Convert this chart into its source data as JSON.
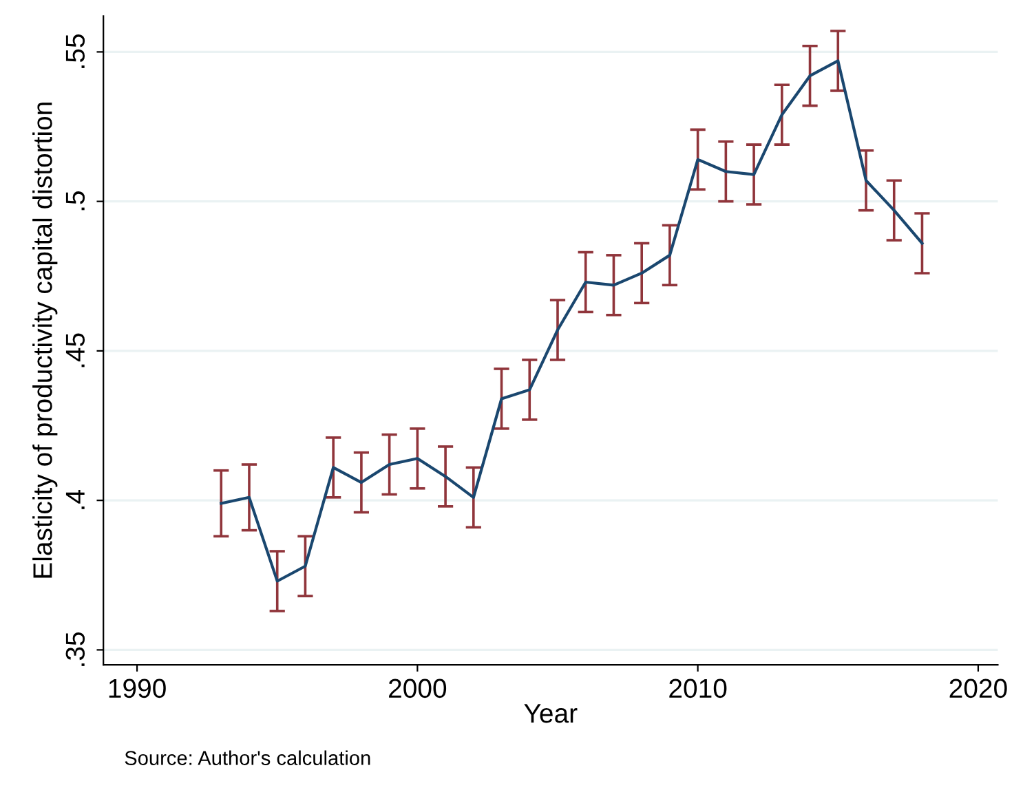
{
  "chart_data": {
    "type": "line",
    "xlabel": "Year",
    "ylabel": "Elasticity of productivity capital distortion",
    "x": [
      1993,
      1994,
      1995,
      1996,
      1997,
      1998,
      1999,
      2000,
      2001,
      2002,
      2003,
      2004,
      2005,
      2006,
      2007,
      2008,
      2009,
      2010,
      2011,
      2012,
      2013,
      2014,
      2015,
      2016,
      2017,
      2018
    ],
    "series": [
      {
        "color": "#1a476f",
        "values": [
          0.399,
          0.401,
          0.373,
          0.378,
          0.411,
          0.406,
          0.412,
          0.414,
          0.408,
          0.401,
          0.434,
          0.437,
          0.457,
          0.473,
          0.472,
          0.476,
          0.482,
          0.514,
          0.51,
          0.509,
          0.529,
          0.542,
          0.547,
          0.507,
          0.497,
          0.486
        ],
        "errors": [
          0.011,
          0.011,
          0.01,
          0.01,
          0.01,
          0.01,
          0.01,
          0.01,
          0.01,
          0.01,
          0.01,
          0.01,
          0.01,
          0.01,
          0.01,
          0.01,
          0.01,
          0.01,
          0.01,
          0.01,
          0.01,
          0.01,
          0.01,
          0.01,
          0.01,
          0.01
        ]
      }
    ],
    "xlim": [
      1988.8,
      2020.7
    ],
    "xticks": [
      1990,
      2000,
      2010,
      2020
    ],
    "ylim": [
      0.345,
      0.562
    ],
    "yticks": [
      {
        "value": 0.35,
        "label": ".35"
      },
      {
        "value": 0.4,
        "label": ".4"
      },
      {
        "value": 0.45,
        "label": ".45"
      },
      {
        "value": 0.5,
        "label": ".5"
      },
      {
        "value": 0.55,
        "label": ".55"
      }
    ],
    "grid": "y",
    "marker": "none",
    "line_style": "solid",
    "annotations": [
      "Source: Author's calculation"
    ]
  }
}
